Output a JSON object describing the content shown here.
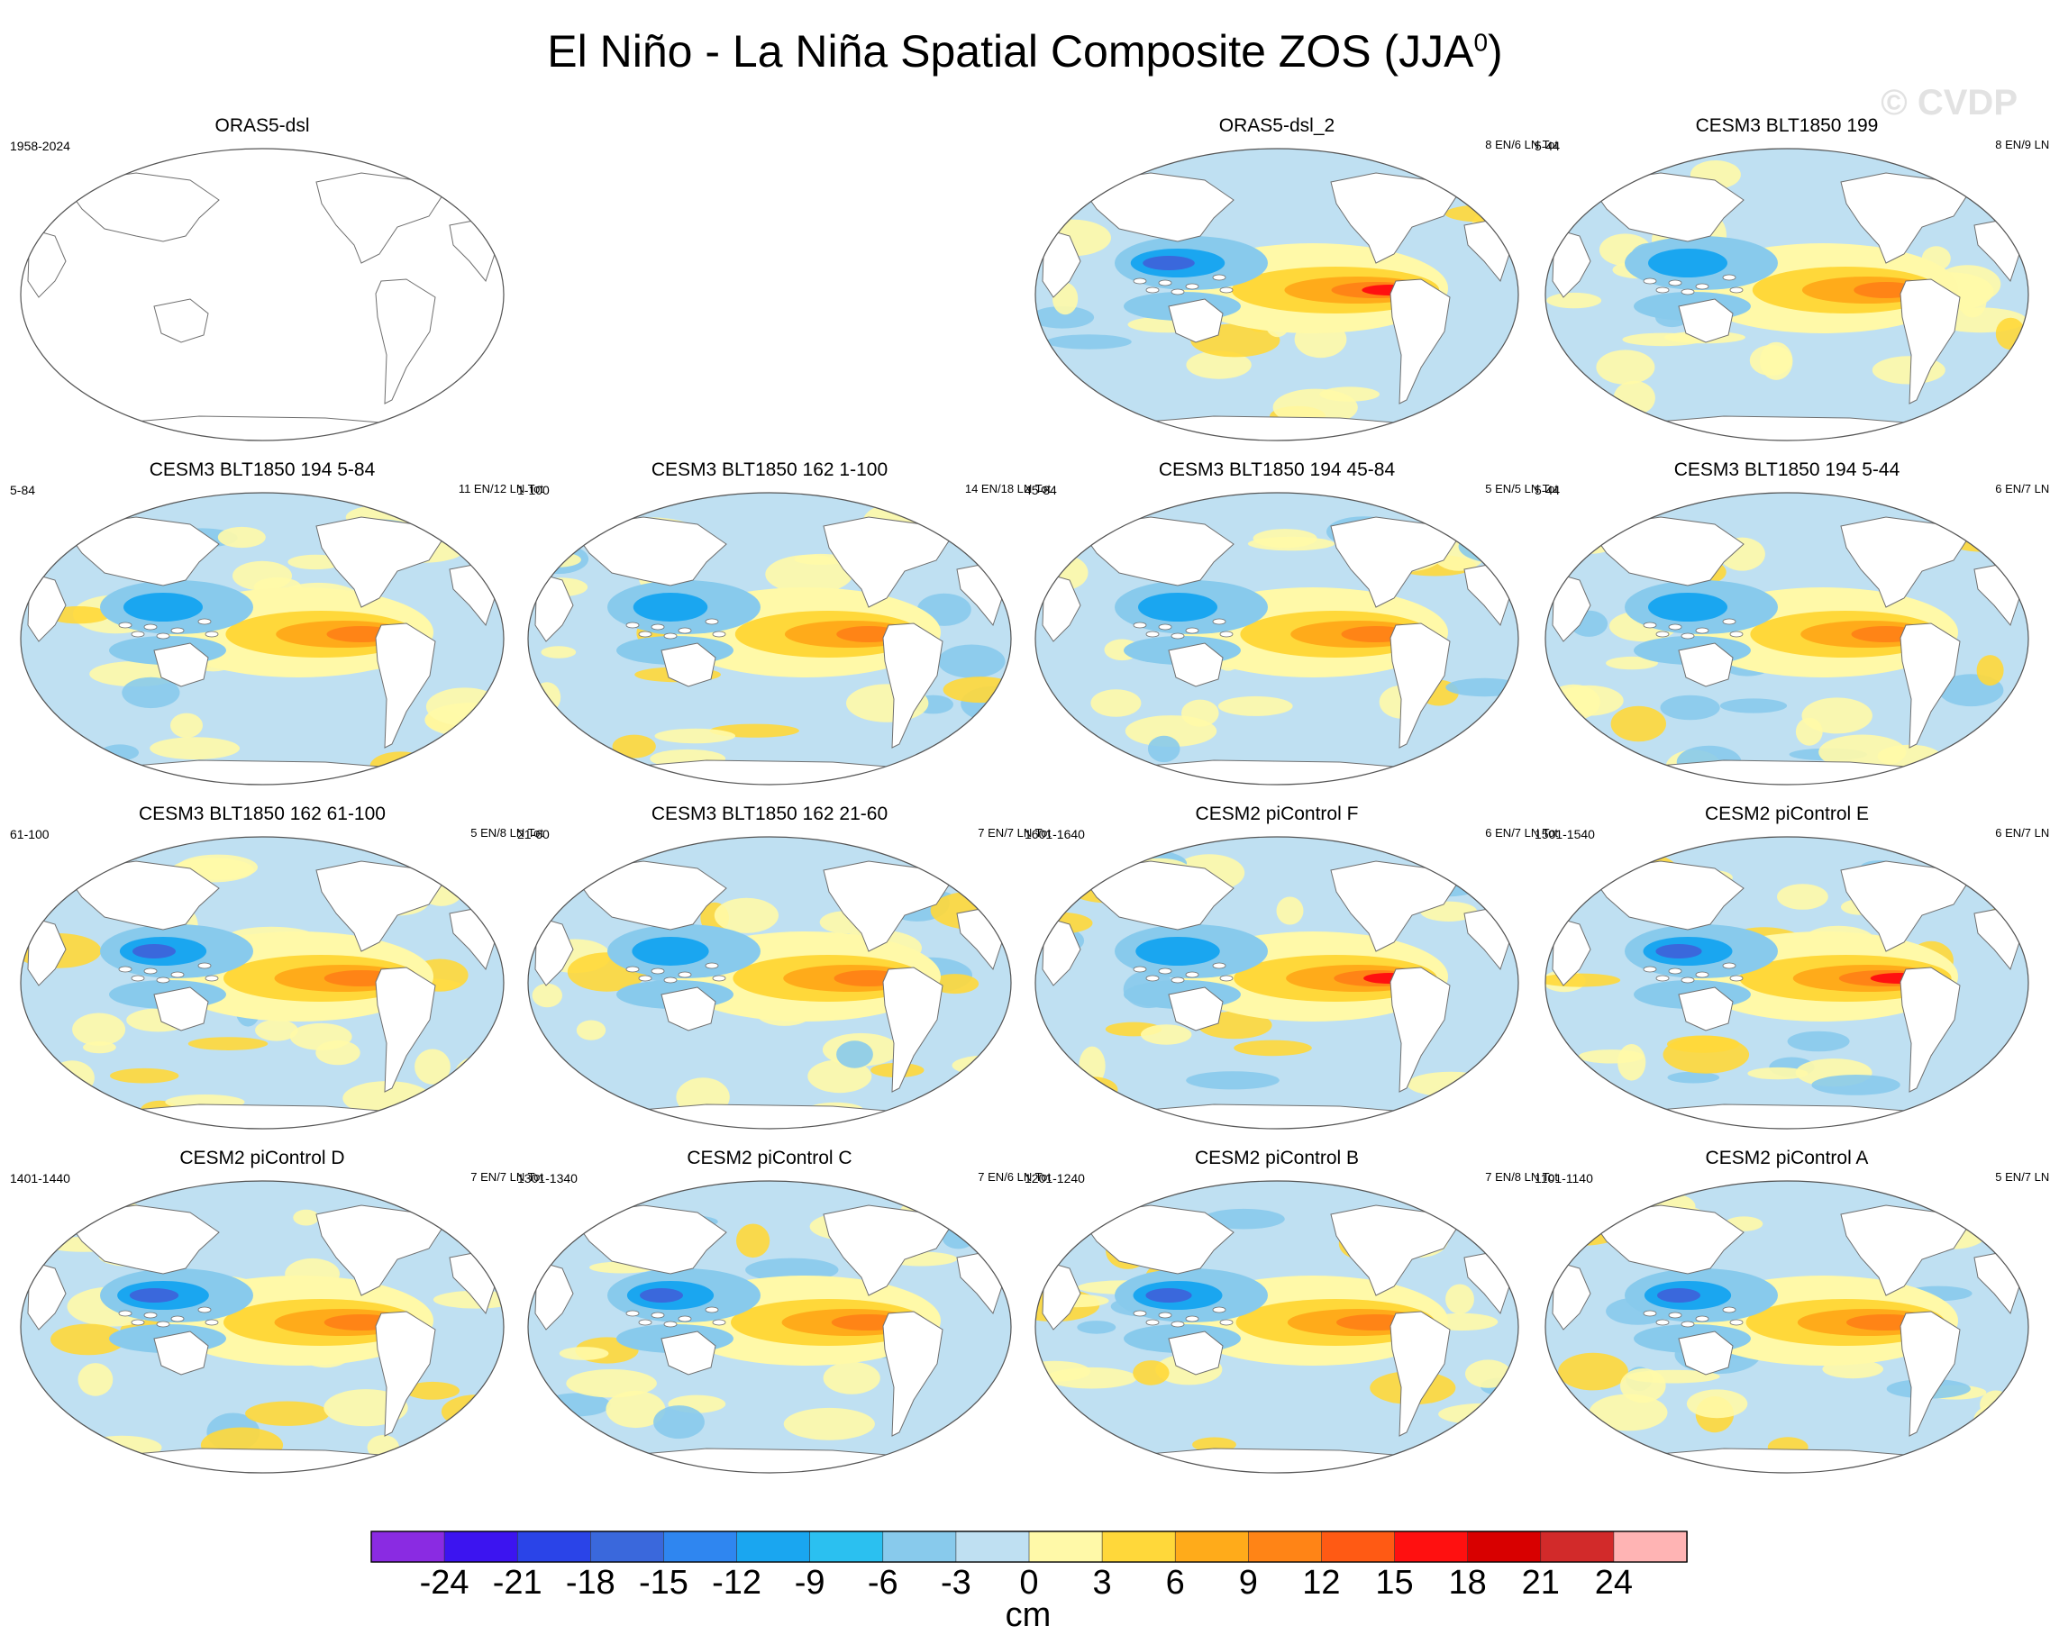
{
  "title": "El Niño - La Niña Spatial Composite ZOS (JJA",
  "title_sup": "0",
  "title_close": ")",
  "watermark": "© CVDP",
  "colors": {
    "ocean_neutral": "#bfe0f2",
    "land": "#ffffff",
    "coast": "#6f6f6f"
  },
  "panels": [
    {
      "title": "ORAS5-dsl",
      "years": "1958-2024",
      "counts": "",
      "empty": true
    },
    {
      "title": "ORAS5-dsl_2",
      "years": "",
      "counts": "8 EN/6 LN Tot",
      "strength": 0.9,
      "western_cool": 0.9
    },
    {
      "title": "CESM3 BLT1850 199",
      "years": "5-44",
      "counts": "8 EN/9 LN Tot",
      "strength": 0.65,
      "western_cool": 0.6
    },
    {
      "title": "CESM3 BLT1850 194 5-84",
      "years": "5-84",
      "counts": "11 EN/12 LN Tot",
      "strength": 0.7,
      "western_cool": 0.6
    },
    {
      "title": "CESM3 BLT1850 162 1-100",
      "years": "1-100",
      "counts": "14 EN/18 LN Tot",
      "strength": 0.65,
      "western_cool": 0.5
    },
    {
      "title": "CESM3 BLT1850 194 45-84",
      "years": "45-84",
      "counts": "5 EN/5 LN Tot",
      "strength": 0.7,
      "western_cool": 0.6
    },
    {
      "title": "CESM3 BLT1850 194 5-44",
      "years": "5-44",
      "counts": "6 EN/7 LN Tot",
      "strength": 0.7,
      "western_cool": 0.6
    },
    {
      "title": "CESM3 BLT1850 162 61-100",
      "years": "61-100",
      "counts": "5 EN/8 LN Tot",
      "strength": 0.75,
      "western_cool": 0.75
    },
    {
      "title": "CESM3 BLT1850 162 21-60",
      "years": "21-60",
      "counts": "7 EN/7 LN Tot",
      "strength": 0.7,
      "western_cool": 0.55
    },
    {
      "title": "CESM2 piControl F",
      "years": "1601-1640",
      "counts": "6 EN/7 LN Tot",
      "strength": 0.85,
      "western_cool": 0.7
    },
    {
      "title": "CESM2 piControl E",
      "years": "1501-1540",
      "counts": "6 EN/7 LN Tot",
      "strength": 0.95,
      "western_cool": 0.8
    },
    {
      "title": "CESM2 piControl D",
      "years": "1401-1440",
      "counts": "7 EN/7 LN Tot",
      "strength": 0.75,
      "western_cool": 0.85
    },
    {
      "title": "CESM2 piControl C",
      "years": "1301-1340",
      "counts": "7 EN/6 LN Tot",
      "strength": 0.75,
      "western_cool": 0.75
    },
    {
      "title": "CESM2 piControl B",
      "years": "1201-1240",
      "counts": "7 EN/8 LN Tot",
      "strength": 0.8,
      "western_cool": 0.8
    },
    {
      "title": "CESM2 piControl A",
      "years": "1101-1140",
      "counts": "5 EN/7 LN Tot",
      "strength": 0.8,
      "western_cool": 0.75
    }
  ],
  "colorbar": {
    "colors": [
      "#8a2be2",
      "#3c14f0",
      "#2a44e8",
      "#3a68dc",
      "#2f86f0",
      "#1aa6f0",
      "#2bc0f0",
      "#88caec",
      "#bfe0f2",
      "#fff9a8",
      "#ffd83a",
      "#ffab1a",
      "#ff8416",
      "#ff5a14",
      "#ff1010",
      "#d80000",
      "#d22a2a",
      "#ffb4b4"
    ],
    "ticks": [
      "-24",
      "-21",
      "-18",
      "-15",
      "-12",
      "-9",
      "-6",
      "-3",
      "0",
      "3",
      "6",
      "9",
      "12",
      "15",
      "18",
      "21",
      "24"
    ],
    "unit": "cm"
  }
}
